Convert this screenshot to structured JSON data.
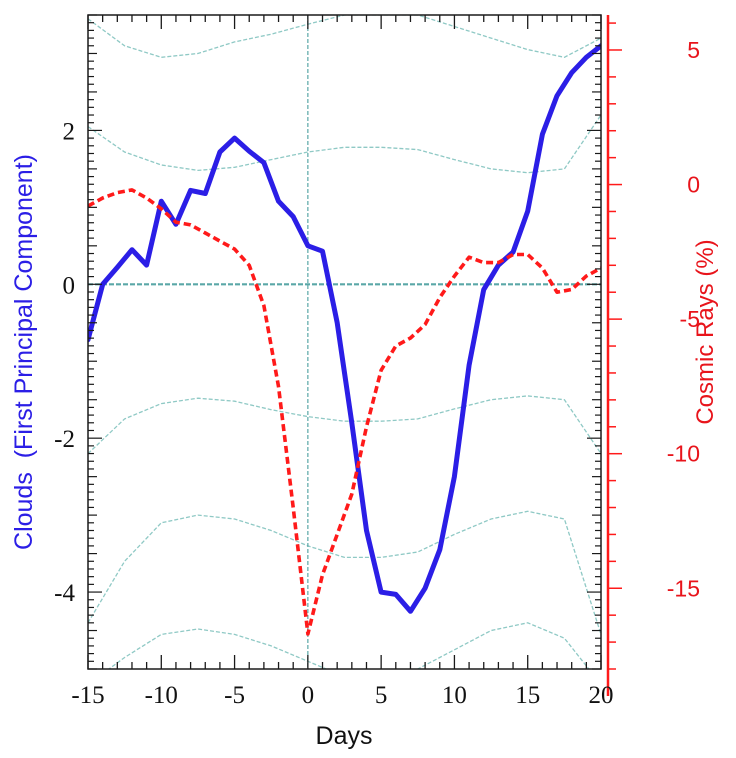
{
  "chart_data": {
    "type": "line",
    "xlabel": "Days",
    "ylabel_left": "Clouds  (First Principal Component)",
    "ylabel_right": "Cosmic Rays (%)",
    "xlim": [
      -15,
      20
    ],
    "ylim_left": [
      -5,
      3.5
    ],
    "ylim_right": [
      -18,
      6.3
    ],
    "x_ticks": [
      -15,
      -10,
      -5,
      0,
      5,
      10,
      15,
      20
    ],
    "x_tick_labels": [
      "-15",
      "-10",
      "-5",
      "0",
      "5",
      "10",
      "15",
      "20"
    ],
    "y_left_ticks": [
      -4,
      -2,
      0,
      2
    ],
    "y_left_tick_labels": [
      "-4",
      "-2",
      "0",
      "2"
    ],
    "y_right_ticks": [
      -15,
      -10,
      -5,
      0,
      5
    ],
    "y_right_tick_labels": [
      "-15",
      "-10",
      "-5",
      "0",
      "5"
    ],
    "grid": false,
    "reference_lines": {
      "x": 0,
      "y": 0
    },
    "series": [
      {
        "axis": "left",
        "style": "solid",
        "color": "#2b1ee6",
        "x": [
          -15,
          -14,
          -13,
          -12,
          -11,
          -10,
          -9,
          -8,
          -7,
          -6,
          -5,
          -4,
          -3,
          -2,
          -1,
          0,
          1,
          2,
          3,
          4,
          5,
          6,
          7,
          8,
          9,
          10,
          11,
          12,
          13,
          14,
          15,
          16,
          17,
          18,
          19,
          20
        ],
        "values": [
          -0.72,
          0.0,
          0.22,
          0.45,
          0.25,
          1.08,
          0.78,
          1.22,
          1.18,
          1.72,
          1.9,
          1.73,
          1.58,
          1.08,
          0.88,
          0.5,
          0.43,
          -0.5,
          -1.8,
          -3.2,
          -4.0,
          -4.03,
          -4.25,
          -3.95,
          -3.45,
          -2.5,
          -1.05,
          -0.07,
          0.25,
          0.42,
          0.95,
          1.95,
          2.45,
          2.75,
          2.95,
          3.1
        ]
      },
      {
        "axis": "right",
        "style": "dashed",
        "color": "#ff1a1a",
        "x": [
          -15,
          -14,
          -13,
          -12,
          -11,
          -10,
          -9,
          -8,
          -7,
          -6,
          -5,
          -4,
          -3,
          -2,
          -1,
          0,
          1,
          2,
          3,
          4,
          5,
          6,
          7,
          8,
          9,
          10,
          11,
          12,
          13,
          14,
          15,
          16,
          17,
          18,
          19,
          20
        ],
        "values": [
          -0.8,
          -0.5,
          -0.3,
          -0.2,
          -0.5,
          -0.9,
          -1.4,
          -1.5,
          -1.8,
          -2.1,
          -2.4,
          -3.0,
          -4.5,
          -7.5,
          -12.0,
          -16.7,
          -14.5,
          -13.0,
          -11.5,
          -9.0,
          -6.9,
          -6.0,
          -5.7,
          -5.2,
          -4.2,
          -3.4,
          -2.7,
          -2.9,
          -2.9,
          -2.6,
          -2.6,
          -3.1,
          -4.0,
          -3.9,
          -3.4,
          -3.1
        ]
      }
    ],
    "bands": [
      {
        "y": [
          3.45,
          3.1,
          2.95,
          3.0,
          3.15,
          3.25,
          3.38,
          3.5,
          3.5,
          3.5,
          3.35,
          3.2,
          3.05,
          2.95,
          3.2
        ]
      },
      {
        "y": [
          2.05,
          1.72,
          1.55,
          1.48,
          1.52,
          1.62,
          1.72,
          1.78,
          1.78,
          1.75,
          1.62,
          1.5,
          1.45,
          1.5,
          2.2
        ]
      },
      {
        "y": [
          -2.2,
          -1.75,
          -1.55,
          -1.48,
          -1.52,
          -1.63,
          -1.72,
          -1.78,
          -1.78,
          -1.75,
          -1.62,
          -1.5,
          -1.45,
          -1.5,
          -2.2
        ]
      },
      {
        "y": [
          -4.4,
          -3.6,
          -3.1,
          -3.0,
          -3.05,
          -3.2,
          -3.4,
          -3.55,
          -3.55,
          -3.48,
          -3.25,
          -3.05,
          -2.95,
          -3.05,
          -4.55
        ]
      },
      {
        "y": [
          -5.2,
          -4.85,
          -4.55,
          -4.48,
          -4.55,
          -4.7,
          -4.9,
          -5.1,
          -5.1,
          -5.0,
          -4.75,
          -4.5,
          -4.4,
          -4.6,
          -5.2
        ]
      }
    ],
    "band_x": [
      -15,
      -12.5,
      -10,
      -7.5,
      -5,
      -2.5,
      0,
      2.5,
      5,
      7.5,
      10,
      12.5,
      15,
      17.5,
      20
    ],
    "colors": {
      "clouds": "#2b1ee6",
      "cosmic_rays": "#ff1a1a",
      "band": "#8fc9c5",
      "reference": "#5aa7a7"
    }
  }
}
